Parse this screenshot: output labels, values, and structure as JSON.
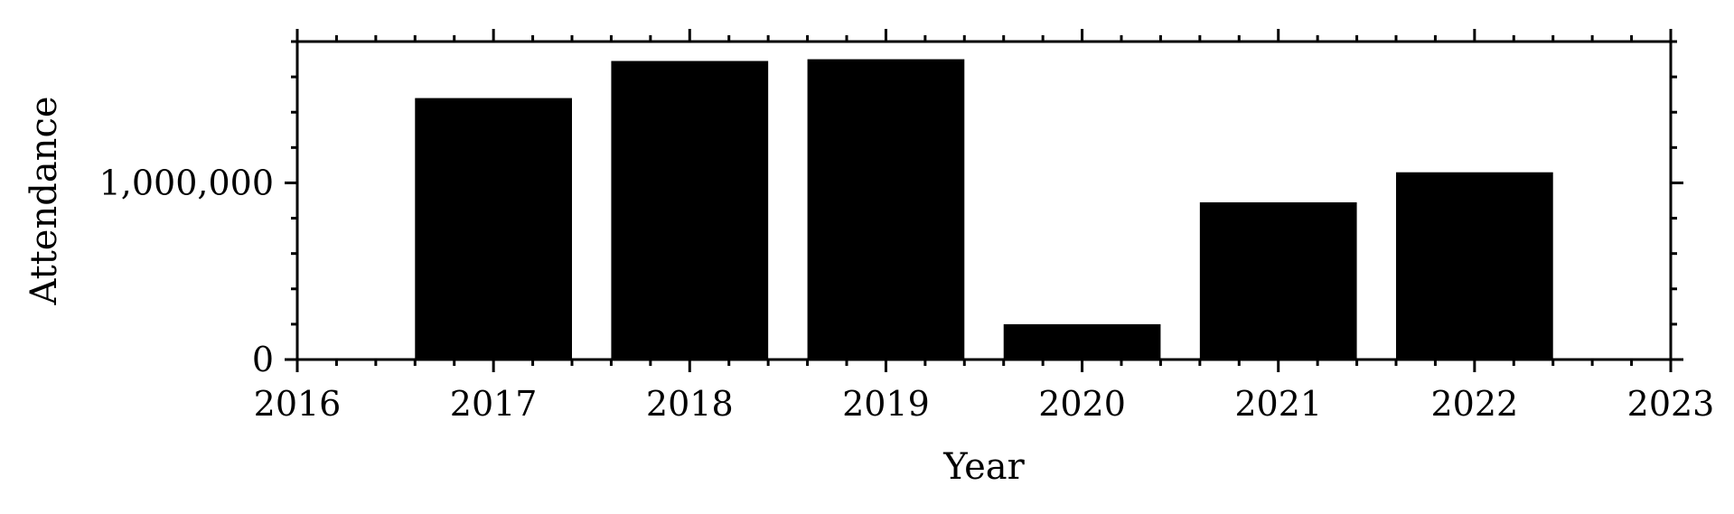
{
  "chart_data": {
    "type": "bar",
    "x": [
      2017,
      2018,
      2019,
      2020,
      2021,
      2022
    ],
    "values": [
      1480000,
      1690000,
      1700000,
      200000,
      890000,
      1060000
    ],
    "xlabel": "Year",
    "ylabel": "Attendance",
    "xlim": [
      2016,
      2023
    ],
    "ylim": [
      0,
      1800000
    ],
    "xticks": [
      2016,
      2017,
      2018,
      2019,
      2020,
      2021,
      2022,
      2023
    ],
    "xtick_labels": [
      "2016",
      "2017",
      "2018",
      "2019",
      "2020",
      "2021",
      "2022",
      "2023"
    ],
    "yticks": [
      0,
      1000000
    ],
    "ytick_labels": [
      "0",
      "1,000,000"
    ],
    "bar_width": 0.8,
    "bar_color": "#000000",
    "grid": false
  }
}
